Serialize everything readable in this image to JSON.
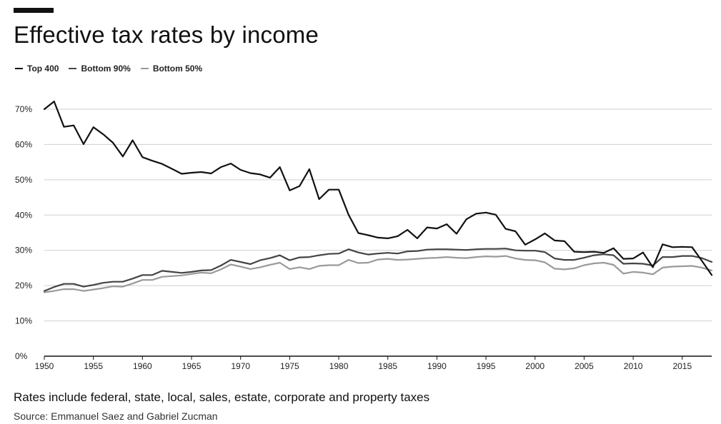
{
  "title": "Effective tax rates by income",
  "subtitle": "Rates include federal, state, local, sales, estate, corporate and property taxes",
  "source": "Source: Emmanuel Saez and Gabriel Zucman",
  "legend": [
    {
      "label": "Top 400",
      "color": "#111111"
    },
    {
      "label": "Bottom 90%",
      "color": "#444444"
    },
    {
      "label": "Bottom 50%",
      "color": "#9a9a9a"
    }
  ],
  "chart_data": {
    "type": "line",
    "title": "Effective tax rates by income",
    "xlabel": "",
    "ylabel": "",
    "xlim": [
      1950,
      2018
    ],
    "ylim": [
      0,
      70
    ],
    "grid": true,
    "legend_position": "top-left",
    "x_ticks": [
      1950,
      1955,
      1960,
      1965,
      1970,
      1975,
      1980,
      1985,
      1990,
      1995,
      2000,
      2005,
      2010,
      2015
    ],
    "x_tick_labels": [
      "1950",
      "1955",
      "1960",
      "1965",
      "1970",
      "1975",
      "1980",
      "1985",
      "1990",
      "1995",
      "2000",
      "2005",
      "2010",
      "2015"
    ],
    "y_ticks": [
      0,
      10,
      20,
      30,
      40,
      50,
      60,
      70
    ],
    "y_tick_labels": [
      "0%",
      "10%",
      "20%",
      "30%",
      "40%",
      "50%",
      "60%",
      "70%"
    ],
    "x": [
      1950,
      1951,
      1952,
      1953,
      1954,
      1955,
      1956,
      1957,
      1958,
      1959,
      1960,
      1961,
      1962,
      1963,
      1964,
      1965,
      1966,
      1967,
      1968,
      1969,
      1970,
      1971,
      1972,
      1973,
      1974,
      1975,
      1976,
      1977,
      1978,
      1979,
      1980,
      1981,
      1982,
      1983,
      1984,
      1985,
      1986,
      1987,
      1988,
      1989,
      1990,
      1991,
      1992,
      1993,
      1994,
      1995,
      1996,
      1997,
      1998,
      1999,
      2000,
      2001,
      2002,
      2003,
      2004,
      2005,
      2006,
      2007,
      2008,
      2009,
      2010,
      2011,
      2012,
      2013,
      2014,
      2015,
      2016,
      2017,
      2018
    ],
    "series": [
      {
        "name": "Top 400",
        "color": "#111111",
        "width": 2.2,
        "values": [
          70.0,
          72.2,
          65.0,
          65.4,
          60.1,
          64.9,
          62.9,
          60.5,
          56.6,
          61.2,
          56.4,
          55.4,
          54.5,
          53.1,
          51.7,
          52.0,
          52.2,
          51.8,
          53.6,
          54.6,
          52.8,
          51.9,
          51.5,
          50.6,
          53.6,
          47.0,
          48.2,
          53.0,
          44.5,
          47.2,
          47.2,
          40.1,
          34.9,
          34.3,
          33.6,
          33.4,
          34.0,
          35.8,
          33.4,
          36.5,
          36.2,
          37.4,
          34.7,
          38.8,
          40.4,
          40.7,
          40.1,
          36.1,
          35.4,
          31.6,
          33.1,
          34.8,
          32.8,
          32.6,
          29.6,
          29.5,
          29.6,
          29.3,
          30.6,
          27.6,
          27.7,
          29.4,
          25.2,
          31.7,
          30.9,
          31.0,
          30.9,
          27.0,
          23.0
        ]
      },
      {
        "name": "Bottom 90%",
        "color": "#444444",
        "width": 2.2,
        "values": [
          18.5,
          19.6,
          20.5,
          20.5,
          19.7,
          20.2,
          20.8,
          21.1,
          21.1,
          22.0,
          23.0,
          23.0,
          24.2,
          23.9,
          23.6,
          23.9,
          24.3,
          24.4,
          25.7,
          27.3,
          26.7,
          26.1,
          27.2,
          27.8,
          28.6,
          27.2,
          28.0,
          28.1,
          28.6,
          29.0,
          29.1,
          30.3,
          29.4,
          28.8,
          29.1,
          29.3,
          29.1,
          29.7,
          29.8,
          30.2,
          30.3,
          30.3,
          30.2,
          30.1,
          30.3,
          30.4,
          30.4,
          30.5,
          30.0,
          29.9,
          29.9,
          29.5,
          27.7,
          27.3,
          27.3,
          27.9,
          28.6,
          28.9,
          28.6,
          26.2,
          26.3,
          26.2,
          25.7,
          28.1,
          28.1,
          28.4,
          28.4,
          27.8,
          26.7
        ]
      },
      {
        "name": "Bottom 50%",
        "color": "#9a9a9a",
        "width": 2.2,
        "values": [
          18.1,
          18.5,
          19.0,
          19.0,
          18.5,
          18.9,
          19.3,
          19.8,
          19.7,
          20.6,
          21.6,
          21.6,
          22.5,
          22.7,
          22.9,
          23.3,
          23.7,
          23.5,
          24.6,
          26.0,
          25.4,
          24.7,
          25.2,
          25.9,
          26.5,
          24.7,
          25.2,
          24.7,
          25.6,
          25.8,
          25.8,
          27.3,
          26.4,
          26.5,
          27.4,
          27.6,
          27.3,
          27.4,
          27.6,
          27.8,
          27.9,
          28.1,
          27.9,
          27.8,
          28.1,
          28.3,
          28.2,
          28.4,
          27.7,
          27.3,
          27.2,
          26.6,
          24.8,
          24.6,
          24.9,
          25.8,
          26.3,
          26.5,
          25.9,
          23.4,
          23.9,
          23.7,
          23.2,
          25.1,
          25.4,
          25.5,
          25.6,
          25.1,
          24.3
        ]
      }
    ]
  }
}
